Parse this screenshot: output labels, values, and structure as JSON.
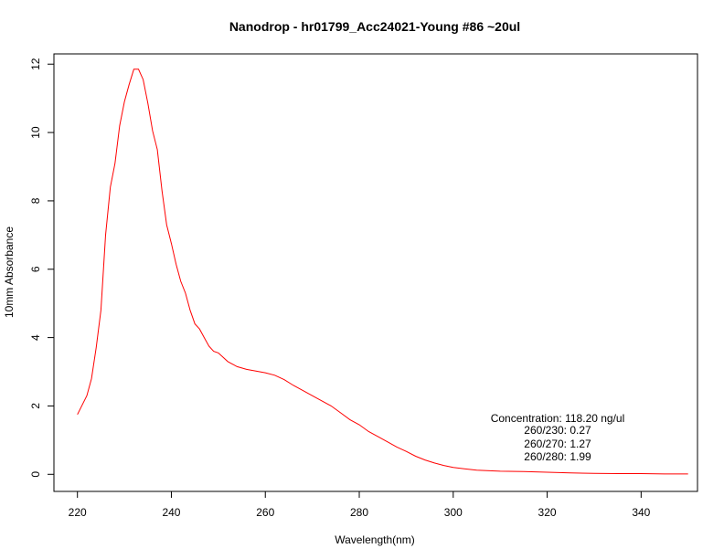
{
  "chart_data": {
    "type": "line",
    "title": "Nanodrop - hr01799_Acc24021-Young #86 ~20ul",
    "xlabel": "Wavelength(nm)",
    "ylabel": "10mm Absorbance",
    "xlim": [
      215,
      352
    ],
    "ylim": [
      -0.5,
      12.3
    ],
    "xticks": [
      220,
      240,
      260,
      280,
      300,
      320,
      340
    ],
    "yticks": [
      0,
      2,
      4,
      6,
      8,
      10,
      12
    ],
    "grid": false,
    "line_color": "#ff0000",
    "series": [
      {
        "x": [
          220,
          222,
          223,
          224,
          225,
          226,
          227,
          228,
          229,
          230,
          231,
          232,
          233,
          234,
          235,
          236,
          237,
          238,
          239,
          240,
          241,
          242,
          243,
          244,
          245,
          246,
          247,
          248,
          249,
          250,
          252,
          254,
          256,
          258,
          260,
          262,
          264,
          266,
          268,
          270,
          272,
          274,
          276,
          278,
          280,
          282,
          284,
          286,
          288,
          290,
          292,
          294,
          296,
          298,
          300,
          305,
          310,
          315,
          320,
          325,
          330,
          335,
          340,
          345,
          350
        ],
        "y": [
          1.75,
          2.3,
          2.8,
          3.7,
          4.8,
          7.0,
          8.4,
          9.1,
          10.2,
          10.9,
          11.4,
          11.85,
          11.85,
          11.55,
          10.85,
          10.05,
          9.5,
          8.3,
          7.3,
          6.75,
          6.15,
          5.65,
          5.3,
          4.8,
          4.4,
          4.25,
          4.0,
          3.75,
          3.6,
          3.55,
          3.3,
          3.15,
          3.07,
          3.02,
          2.97,
          2.9,
          2.77,
          2.6,
          2.45,
          2.3,
          2.15,
          2.0,
          1.8,
          1.6,
          1.45,
          1.25,
          1.1,
          0.95,
          0.8,
          0.67,
          0.53,
          0.42,
          0.33,
          0.26,
          0.2,
          0.12,
          0.09,
          0.08,
          0.06,
          0.04,
          0.03,
          0.02,
          0.02,
          0.01,
          0.01
        ]
      }
    ],
    "annotation": {
      "concentration": "Concentration: 118.20 ng/ul",
      "r230": "260/230: 0.27",
      "r270": "260/270: 1.27",
      "r280": "260/280: 1.99"
    }
  }
}
